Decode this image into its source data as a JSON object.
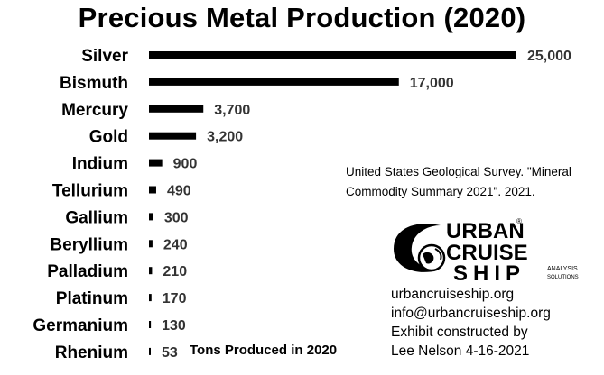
{
  "chart_data": {
    "type": "bar",
    "orientation": "horizontal",
    "title": "Precious Metal Production (2020)",
    "xlabel": "Tons Produced in 2020",
    "ylabel": "",
    "xlim": [
      0,
      25000
    ],
    "grid": false,
    "legend": "none",
    "categories": [
      "Silver",
      "Bismuth",
      "Mercury",
      "Gold",
      "Indium",
      "Tellurium",
      "Gallium",
      "Beryllium",
      "Palladium",
      "Platinum",
      "Germanium",
      "Rhenium"
    ],
    "values": [
      25000,
      17000,
      3700,
      3200,
      900,
      490,
      300,
      240,
      210,
      170,
      130,
      53
    ],
    "value_labels": [
      "25,000",
      "17,000",
      "3,700",
      "3,200",
      "900",
      "490",
      "300",
      "240",
      "210",
      "170",
      "130",
      "53"
    ],
    "bar_color": "#000000"
  },
  "source_text": "United States Geological Survey. \"Mineral Commodity Summary 2021\". 2021.",
  "logo": {
    "line1": "URBAN",
    "line2": "CRUISE",
    "line3": "SHIP",
    "tag1": "ANALYSIS",
    "tag2": "SOLUTIONS",
    "registered": "®"
  },
  "contact": {
    "website": "urbancruiseship.org",
    "email": "info@urbancruiseship.org",
    "credit1": "Exhibit constructed by",
    "credit2": "Lee Nelson 4-16-2021"
  }
}
